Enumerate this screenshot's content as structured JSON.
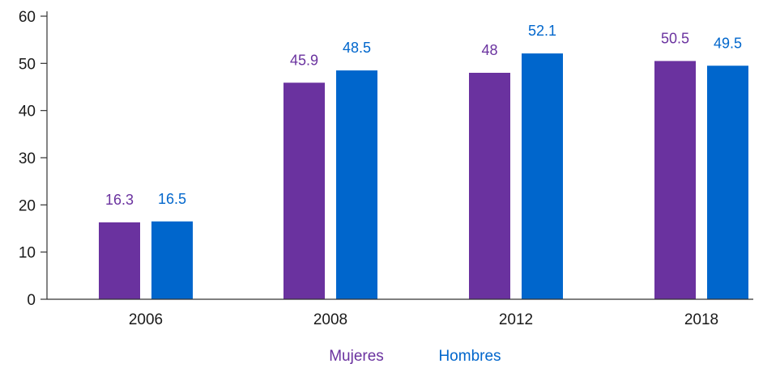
{
  "chart_data": {
    "type": "bar",
    "categories": [
      "2006",
      "2008",
      "2012",
      "2018"
    ],
    "series": [
      {
        "name": "Mujeres",
        "color": "#6A329F",
        "values": [
          16.3,
          45.9,
          48,
          50.5
        ]
      },
      {
        "name": "Hombres",
        "color": "#0066CC",
        "values": [
          16.5,
          48.5,
          52.1,
          49.5
        ]
      }
    ],
    "ylim": [
      0,
      60
    ],
    "yticks": [
      "0",
      "10",
      "20",
      "30",
      "40",
      "50",
      "60"
    ],
    "value_labels": [
      [
        "16.3",
        "45.9",
        "48",
        "50.5"
      ],
      [
        "16.5",
        "48.5",
        "52.1",
        "49.5"
      ]
    ],
    "grid": false,
    "legend_position": "bottom-center",
    "title": "",
    "xlabel": "",
    "ylabel": ""
  }
}
